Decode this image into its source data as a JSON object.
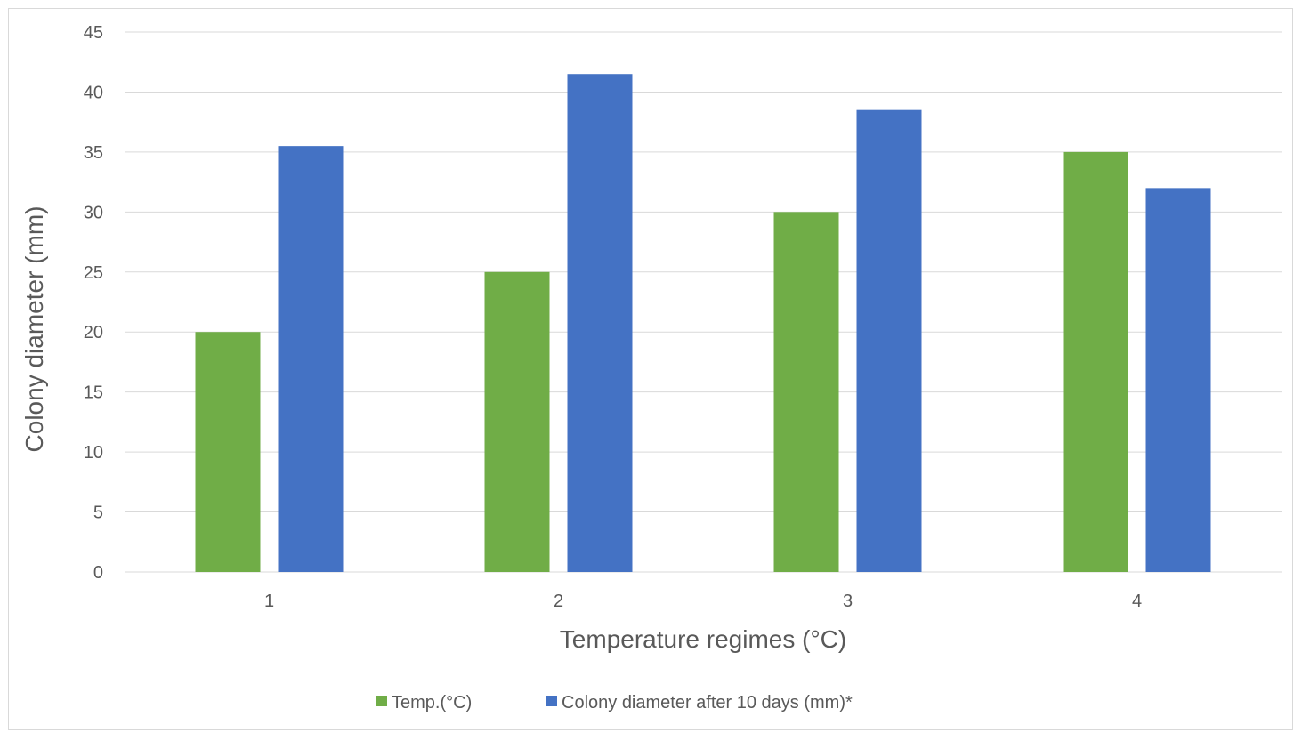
{
  "chart_data": {
    "type": "bar",
    "title": "",
    "xlabel": "Temperature regimes (°C)",
    "ylabel": "Colony diameter  (mm)",
    "categories": [
      "1",
      "2",
      "3",
      "4"
    ],
    "series": [
      {
        "name": "Temp.(°C)",
        "color": "#70ad47",
        "values": [
          20,
          25,
          30,
          35
        ]
      },
      {
        "name": "Colony diameter after 10 days (mm)*",
        "color": "#4472c4",
        "values": [
          35.5,
          41.5,
          38.5,
          32
        ]
      }
    ],
    "ylim": [
      0,
      45
    ],
    "yticks": [
      "0",
      "5",
      "10",
      "15",
      "20",
      "25",
      "30",
      "35",
      "40",
      "45"
    ],
    "grid": true,
    "legend_position": "bottom"
  }
}
